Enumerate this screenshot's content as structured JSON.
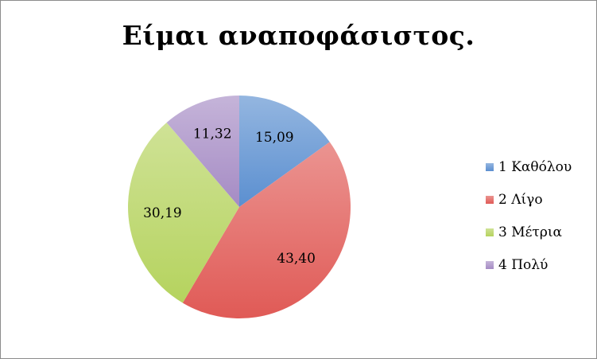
{
  "chart_data": {
    "type": "pie",
    "title": "Είμαι αναποφάσιστος.",
    "categories": [
      "1 Καθόλου",
      "2 Λίγο",
      "3 Μέτρια",
      "4 Πολύ"
    ],
    "values": [
      15.09,
      43.4,
      30.19,
      11.32
    ],
    "data_labels": [
      "15,09",
      "43,40",
      "30,19",
      "11,32"
    ],
    "colors": [
      "#5b8fd0",
      "#e05a56",
      "#b5d35e",
      "#a58bc4"
    ],
    "legend_position": "right",
    "start_angle": "12 o'clock",
    "direction": "clockwise"
  }
}
